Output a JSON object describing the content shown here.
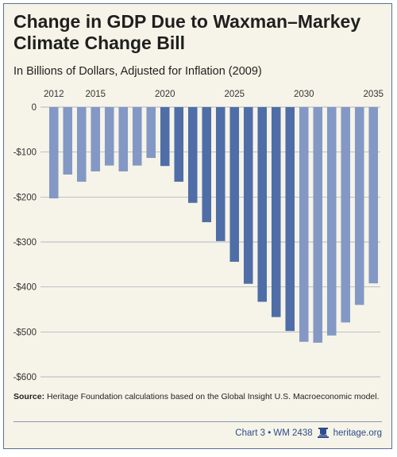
{
  "title": "Change in GDP Due to Waxman–Markey Climate Change Bill",
  "subtitle": "In Billions of Dollars, Adjusted for Inflation (2009)",
  "source_label": "Source:",
  "source_text": "Heritage Foundation calculations based on the Global Insight U.S. Macroeconomic model.",
  "footer": {
    "chart_id": "Chart 3 • WM 2438",
    "site": "heritage.org",
    "icon": "bell-icon"
  },
  "colors": {
    "light_bar": "#8398c4",
    "dark_bar": "#4f6ea8",
    "background": "#f6f4e8",
    "grid": "#9aa1b8"
  },
  "chart_data": {
    "type": "bar",
    "categories": [
      2012,
      2013,
      2014,
      2015,
      2016,
      2017,
      2018,
      2019,
      2020,
      2021,
      2022,
      2023,
      2024,
      2025,
      2026,
      2027,
      2028,
      2029,
      2030,
      2031,
      2032,
      2033,
      2034,
      2035
    ],
    "values": [
      -203,
      -150,
      -166,
      -143,
      -130,
      -143,
      -130,
      -113,
      -131,
      -166,
      -213,
      -256,
      -298,
      -344,
      -393,
      -433,
      -467,
      -498,
      -522,
      -524,
      -508,
      -479,
      -440,
      -392
    ],
    "highlight_range": [
      2020,
      2029
    ],
    "x_tick_labels": [
      "2012",
      "2015",
      "2020",
      "2025",
      "2030",
      "2035"
    ],
    "y_tick_labels": [
      "0",
      "-$100",
      "-$200",
      "-$300",
      "-$400",
      "-$500",
      "-$600"
    ],
    "ylim": [
      -600,
      0
    ],
    "xlabel": "",
    "ylabel": "",
    "grid": true
  }
}
